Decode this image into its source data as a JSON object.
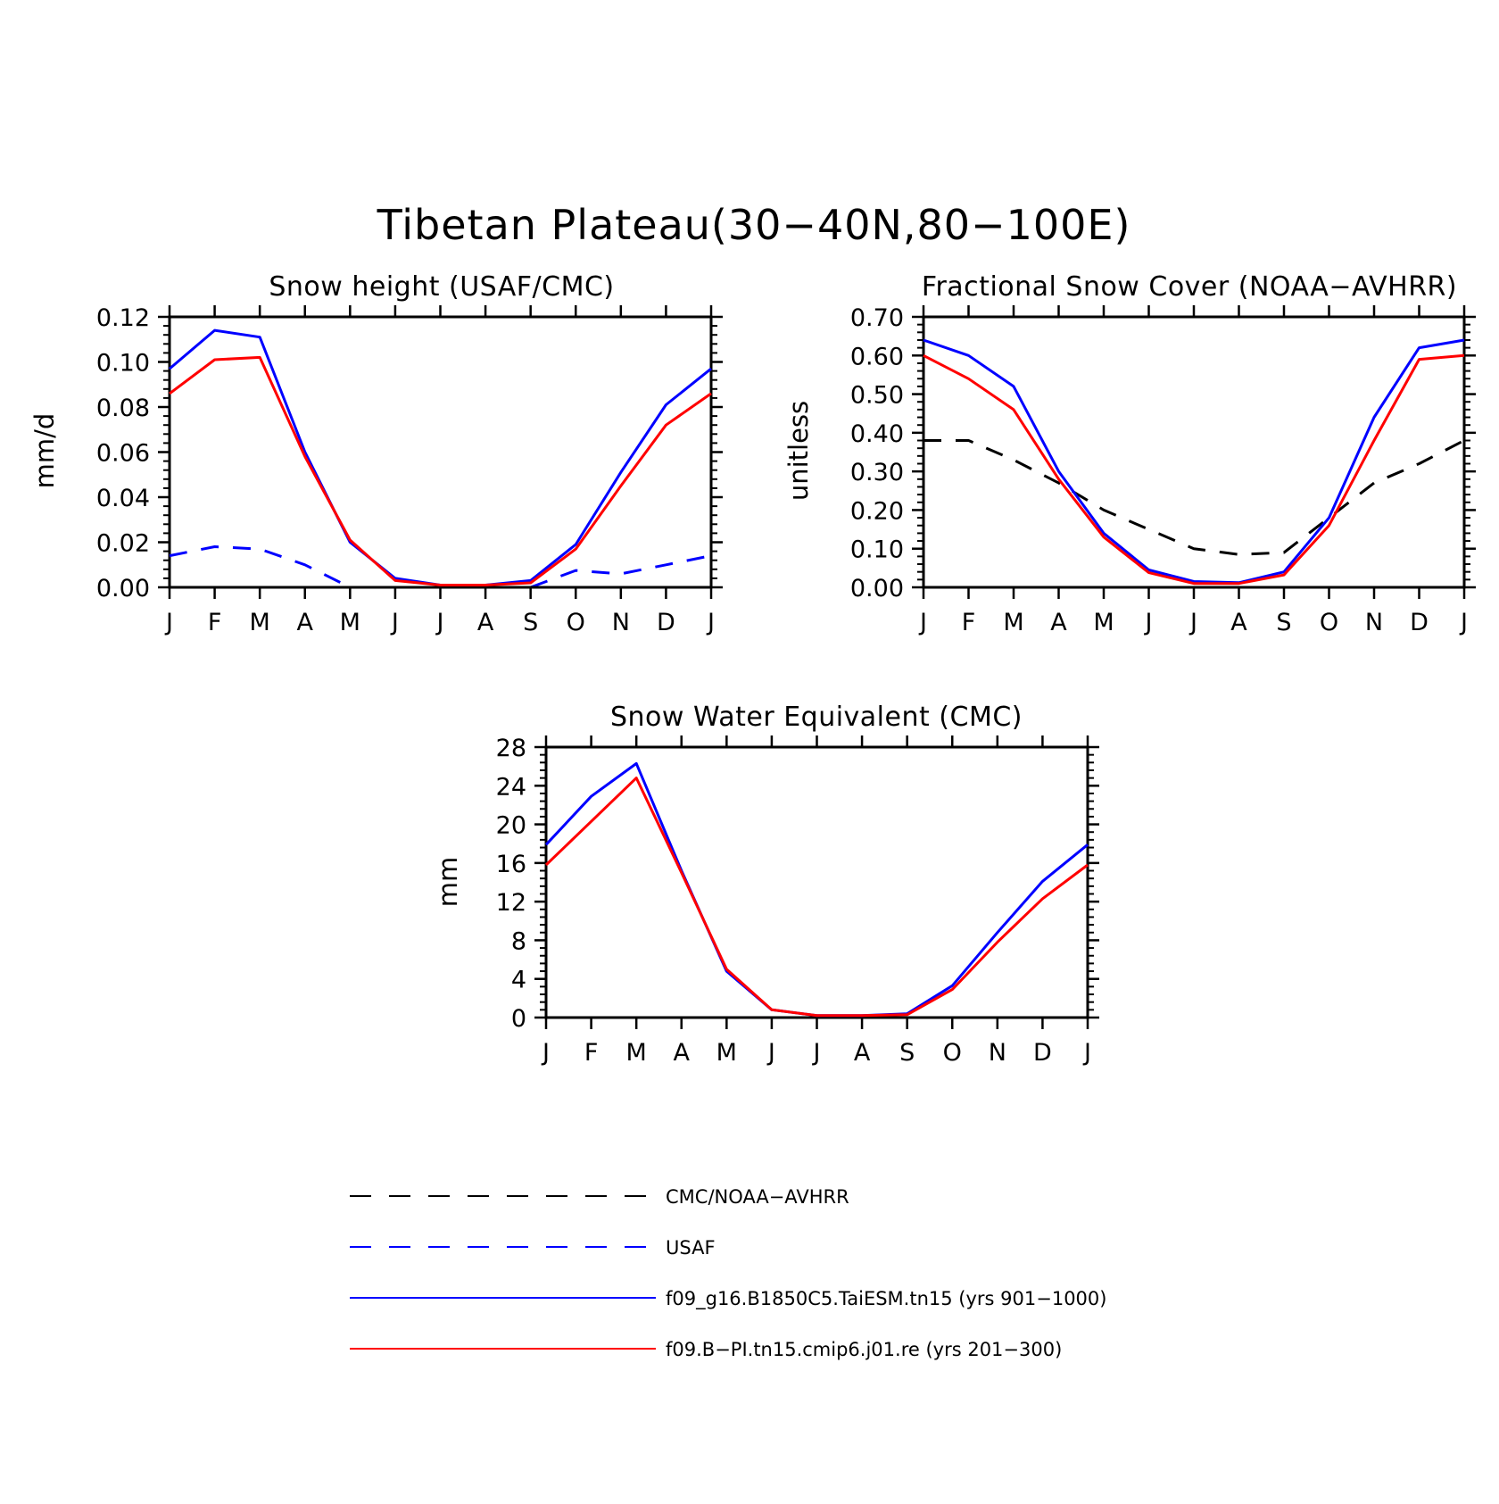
{
  "title": "Tibetan Plateau(30−40N,80−100E)",
  "colors": {
    "obs_black": "#000000",
    "obs_blue": "#0000ff",
    "model_blue": "#0000ff",
    "model_red": "#ff0000"
  },
  "legend": [
    {
      "label": "CMC/NOAA−AVHRR",
      "color": "#000000",
      "dash": "dashed"
    },
    {
      "label": "USAF",
      "color": "#0000ff",
      "dash": "dashed"
    },
    {
      "label": "f09_g16.B1850C5.TaiESM.tn15 (yrs 901−1000)",
      "color": "#0000ff",
      "dash": "solid"
    },
    {
      "label": "f09.B−PI.tn15.cmip6.j01.re (yrs 201−300)",
      "color": "#ff0000",
      "dash": "solid"
    }
  ],
  "chart_data": [
    {
      "type": "line",
      "title": "Snow height (USAF/CMC)",
      "ylabel": "mm/d",
      "xlabel": "",
      "categories": [
        "J",
        "F",
        "M",
        "A",
        "M",
        "J",
        "J",
        "A",
        "S",
        "O",
        "N",
        "D",
        "J"
      ],
      "ylim": [
        0,
        0.12
      ],
      "yticks": [
        "0.00",
        "0.02",
        "0.04",
        "0.06",
        "0.08",
        "0.10",
        "0.12"
      ],
      "grid": false,
      "series": [
        {
          "name": "USAF",
          "color": "#0000ff",
          "dash": "dashed",
          "values": [
            0.014,
            0.018,
            0.017,
            0.01,
            0.0,
            null,
            null,
            null,
            0.0,
            0.0075,
            0.006,
            0.01,
            0.014
          ]
        },
        {
          "name": "CMC/NOAA−AVHRR",
          "color": "#000000",
          "dash": "dashed",
          "values": [
            0.0,
            0.0,
            0.0,
            0.0,
            0.0,
            0.0,
            0.0,
            0.0,
            0.0,
            0.0,
            0.0,
            0.0,
            0.0
          ]
        },
        {
          "name": "f09_g16.B1850C5.TaiESM.tn15 (yrs 901−1000)",
          "color": "#0000ff",
          "dash": "solid",
          "values": [
            0.097,
            0.114,
            0.111,
            0.06,
            0.02,
            0.004,
            0.001,
            0.001,
            0.003,
            0.019,
            0.051,
            0.081,
            0.097
          ]
        },
        {
          "name": "f09.B−PI.tn15.cmip6.j01.re (yrs 201−300)",
          "color": "#ff0000",
          "dash": "solid",
          "values": [
            0.086,
            0.101,
            0.102,
            0.058,
            0.021,
            0.003,
            0.001,
            0.001,
            0.002,
            0.017,
            0.045,
            0.072,
            0.086
          ]
        }
      ]
    },
    {
      "type": "line",
      "title": "Fractional Snow Cover (NOAA−AVHRR)",
      "ylabel": "unitless",
      "xlabel": "",
      "categories": [
        "J",
        "F",
        "M",
        "A",
        "M",
        "J",
        "J",
        "A",
        "S",
        "O",
        "N",
        "D",
        "J"
      ],
      "ylim": [
        0,
        0.7
      ],
      "yticks": [
        "0.00",
        "0.10",
        "0.20",
        "0.30",
        "0.40",
        "0.50",
        "0.60",
        "0.70"
      ],
      "grid": false,
      "series": [
        {
          "name": "CMC/NOAA−AVHRR",
          "color": "#000000",
          "dash": "dashed",
          "values": [
            0.38,
            0.38,
            0.33,
            0.27,
            0.2,
            0.15,
            0.1,
            0.085,
            0.09,
            0.18,
            0.27,
            0.32,
            0.38
          ]
        },
        {
          "name": "f09_g16.B1850C5.TaiESM.tn15 (yrs 901−1000)",
          "color": "#0000ff",
          "dash": "solid",
          "values": [
            0.64,
            0.6,
            0.52,
            0.3,
            0.14,
            0.045,
            0.015,
            0.012,
            0.04,
            0.18,
            0.44,
            0.62,
            0.64
          ]
        },
        {
          "name": "f09.B−PI.tn15.cmip6.j01.re (yrs 201−300)",
          "color": "#ff0000",
          "dash": "solid",
          "values": [
            0.6,
            0.54,
            0.46,
            0.28,
            0.13,
            0.038,
            0.01,
            0.01,
            0.032,
            0.16,
            0.38,
            0.59,
            0.6
          ]
        }
      ]
    },
    {
      "type": "line",
      "title": "Snow Water Equivalent (CMC)",
      "ylabel": "mm",
      "xlabel": "",
      "categories": [
        "J",
        "F",
        "M",
        "A",
        "M",
        "J",
        "J",
        "A",
        "S",
        "O",
        "N",
        "D",
        "J"
      ],
      "ylim": [
        0,
        28
      ],
      "yticks": [
        "0",
        "4",
        "8",
        "12",
        "16",
        "20",
        "24",
        "28"
      ],
      "grid": false,
      "series": [
        {
          "name": "f09_g16.B1850C5.TaiESM.tn15 (yrs 901−1000)",
          "color": "#0000ff",
          "dash": "solid",
          "values": [
            17.9,
            22.9,
            26.3,
            15.2,
            4.8,
            0.8,
            0.2,
            0.2,
            0.4,
            3.3,
            8.8,
            14.1,
            17.9
          ]
        },
        {
          "name": "f09.B−PI.tn15.cmip6.j01.re (yrs 201−300)",
          "color": "#ff0000",
          "dash": "solid",
          "values": [
            15.8,
            20.3,
            24.8,
            15.0,
            5.0,
            0.8,
            0.2,
            0.2,
            0.3,
            2.9,
            7.8,
            12.3,
            15.8
          ]
        }
      ]
    }
  ]
}
